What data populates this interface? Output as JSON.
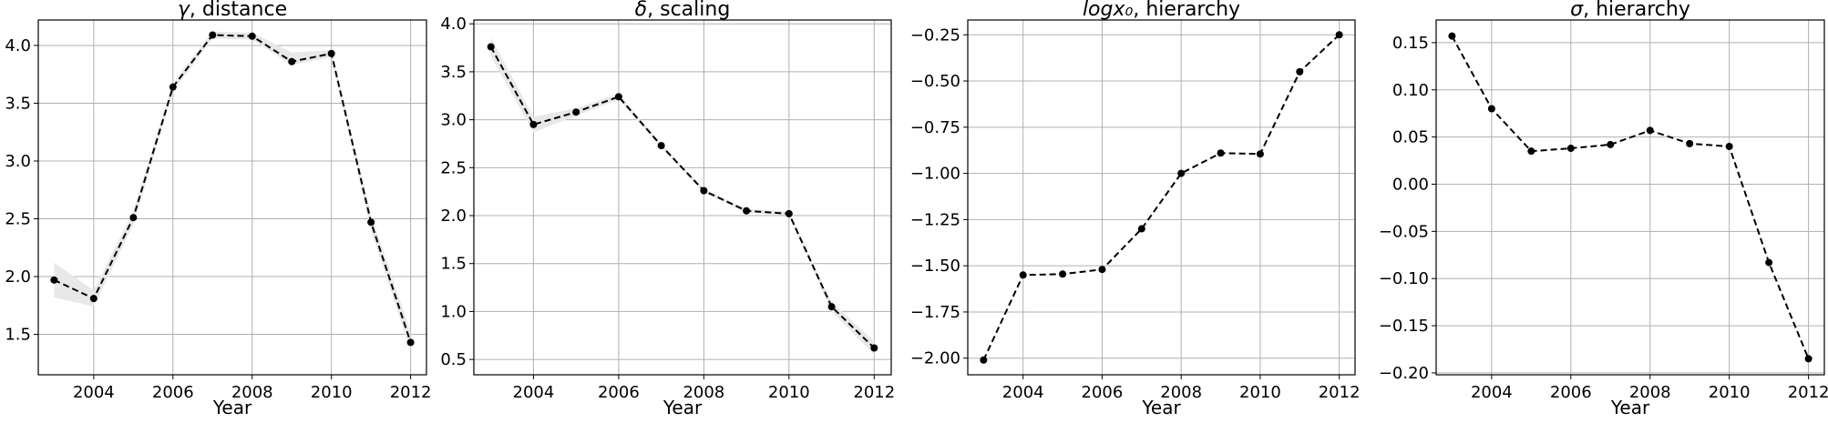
{
  "chart_data": [
    {
      "type": "line",
      "title": "γ, distance",
      "title_symbol": "γ",
      "title_text": ", distance",
      "xlabel": "Year",
      "ylabel": "",
      "x": [
        2003,
        2004,
        2005,
        2006,
        2007,
        2008,
        2009,
        2010,
        2011,
        2012
      ],
      "series": [
        {
          "values": [
            1.97,
            1.81,
            2.51,
            3.64,
            4.09,
            4.08,
            3.86,
            3.93,
            2.47,
            1.43
          ],
          "band_lower": [
            1.82,
            1.74,
            2.45,
            3.6,
            4.06,
            4.05,
            3.83,
            3.9,
            2.4,
            1.36
          ],
          "band_upper": [
            2.12,
            1.88,
            2.57,
            3.68,
            4.12,
            4.11,
            3.94,
            3.96,
            2.54,
            1.52
          ],
          "line_style": "dashed",
          "marker": "circle",
          "color": "#000000",
          "band_color": "#e8e8e8"
        }
      ],
      "xlim": [
        2002.6,
        2012.4
      ],
      "ylim": [
        1.15,
        4.22
      ],
      "xticks": [
        2004,
        2006,
        2008,
        2010,
        2012
      ],
      "yticks": [
        1.5,
        2.0,
        2.5,
        3.0,
        3.5,
        4.0
      ],
      "ytick_labels": [
        "1.5",
        "2.0",
        "2.5",
        "3.0",
        "3.5",
        "4.0"
      ],
      "grid": true
    },
    {
      "type": "line",
      "title": "δ, scaling",
      "title_symbol": "δ",
      "title_text": ", scaling",
      "xlabel": "Year",
      "ylabel": "",
      "x": [
        2003,
        2004,
        2005,
        2006,
        2007,
        2008,
        2009,
        2010,
        2011,
        2012
      ],
      "series": [
        {
          "values": [
            3.76,
            2.95,
            3.08,
            3.24,
            2.73,
            2.26,
            2.05,
            2.02,
            1.05,
            0.62
          ],
          "band_lower": [
            3.66,
            2.87,
            3.04,
            3.21,
            2.71,
            2.24,
            2.03,
            2.0,
            1.0,
            0.55
          ],
          "band_upper": [
            3.86,
            3.03,
            3.12,
            3.27,
            2.75,
            2.28,
            2.07,
            2.04,
            1.1,
            0.69
          ],
          "line_style": "dashed",
          "marker": "circle",
          "color": "#000000",
          "band_color": "#e8e8e8"
        }
      ],
      "xlim": [
        2002.6,
        2012.4
      ],
      "ylim": [
        0.34,
        4.04
      ],
      "xticks": [
        2004,
        2006,
        2008,
        2010,
        2012
      ],
      "yticks": [
        0.5,
        1.0,
        1.5,
        2.0,
        2.5,
        3.0,
        3.5,
        4.0
      ],
      "ytick_labels": [
        "0.5",
        "1.0",
        "1.5",
        "2.0",
        "2.5",
        "3.0",
        "3.5",
        "4.0"
      ],
      "grid": true
    },
    {
      "type": "line",
      "title": "logx₀, hierarchy",
      "title_symbol": "logx₀",
      "title_text": ", hierarchy",
      "xlabel": "Year",
      "ylabel": "",
      "x": [
        2003,
        2004,
        2005,
        2006,
        2007,
        2008,
        2009,
        2010,
        2011,
        2012
      ],
      "series": [
        {
          "values": [
            -2.01,
            -1.55,
            -1.545,
            -1.52,
            -1.3,
            -1.0,
            -0.89,
            -0.895,
            -0.45,
            -0.25
          ],
          "line_style": "dashed",
          "marker": "circle",
          "color": "#000000"
        }
      ],
      "xlim": [
        2002.6,
        2012.4
      ],
      "ylim": [
        -2.09,
        -0.17
      ],
      "xticks": [
        2004,
        2006,
        2008,
        2010,
        2012
      ],
      "yticks": [
        -2.0,
        -1.75,
        -1.5,
        -1.25,
        -1.0,
        -0.75,
        -0.5,
        -0.25
      ],
      "ytick_labels": [
        "−2.00",
        "−1.75",
        "−1.50",
        "−1.25",
        "−1.00",
        "−0.75",
        "−0.50",
        "−0.25"
      ],
      "grid": true
    },
    {
      "type": "line",
      "title": "σ, hierarchy",
      "title_symbol": "σ",
      "title_text": ", hierarchy",
      "xlabel": "Year",
      "ylabel": "",
      "x": [
        2003,
        2004,
        2005,
        2006,
        2007,
        2008,
        2009,
        2010,
        2011,
        2012
      ],
      "series": [
        {
          "values": [
            0.157,
            0.08,
            0.035,
            0.038,
            0.042,
            0.057,
            0.043,
            0.04,
            -0.083,
            -0.185
          ],
          "line_style": "dashed",
          "marker": "circle",
          "color": "#000000"
        }
      ],
      "xlim": [
        2002.6,
        2012.4
      ],
      "ylim": [
        -0.202,
        0.174
      ],
      "xticks": [
        2004,
        2006,
        2008,
        2010,
        2012
      ],
      "yticks": [
        -0.2,
        -0.15,
        -0.1,
        -0.05,
        0.0,
        0.05,
        0.1,
        0.15
      ],
      "ytick_labels": [
        "−0.20",
        "−0.15",
        "−0.10",
        "−0.05",
        "0.00",
        "0.05",
        "0.10",
        "0.15"
      ],
      "grid": true
    }
  ]
}
